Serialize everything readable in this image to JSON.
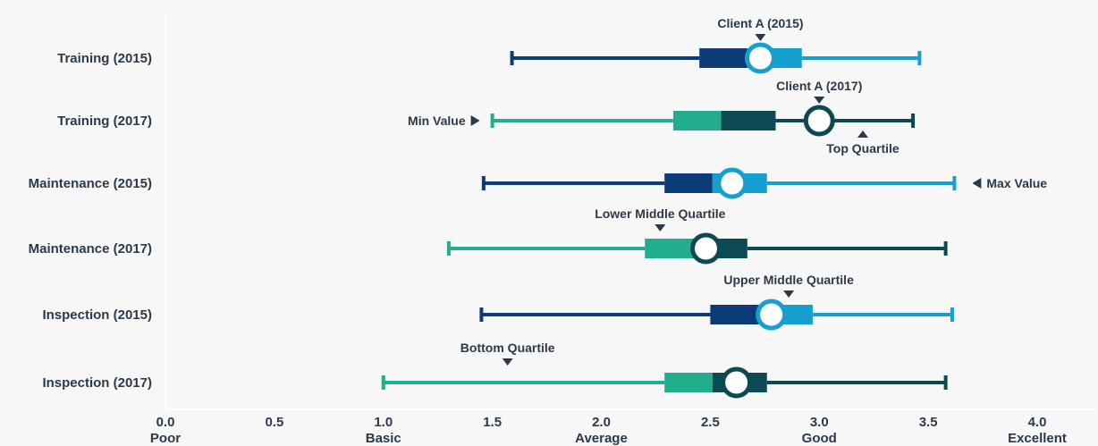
{
  "chart_data": {
    "type": "boxplot",
    "xlim": [
      0,
      4
    ],
    "x_ticks": [
      {
        "value": 0.0,
        "label": "0.0",
        "sublabel": "Poor"
      },
      {
        "value": 0.5,
        "label": "0.5",
        "sublabel": ""
      },
      {
        "value": 1.0,
        "label": "1.0",
        "sublabel": "Basic"
      },
      {
        "value": 1.5,
        "label": "1.5",
        "sublabel": ""
      },
      {
        "value": 2.0,
        "label": "2.0",
        "sublabel": "Average"
      },
      {
        "value": 2.5,
        "label": "2.5",
        "sublabel": ""
      },
      {
        "value": 3.0,
        "label": "3.0",
        "sublabel": "Good"
      },
      {
        "value": 3.5,
        "label": "3.5",
        "sublabel": ""
      },
      {
        "value": 4.0,
        "label": "4.0",
        "sublabel": "Excellent"
      }
    ],
    "rows": [
      {
        "label": "Training (2015)",
        "year": "2015",
        "min": 1.59,
        "q1": 2.45,
        "median": 2.67,
        "q3": 2.92,
        "max": 3.46,
        "client": 2.73
      },
      {
        "label": "Training (2017)",
        "year": "2017",
        "min": 1.5,
        "q1": 2.33,
        "median": 2.55,
        "q3": 2.8,
        "max": 3.43,
        "client": 3.0
      },
      {
        "label": "Maintenance (2015)",
        "year": "2015",
        "min": 1.46,
        "q1": 2.29,
        "median": 2.51,
        "q3": 2.76,
        "max": 3.62,
        "client": 2.6
      },
      {
        "label": "Maintenance (2017)",
        "year": "2017",
        "min": 1.3,
        "q1": 2.2,
        "median": 2.42,
        "q3": 2.67,
        "max": 3.58,
        "client": 2.48
      },
      {
        "label": "Inspection (2015)",
        "year": "2015",
        "min": 1.45,
        "q1": 2.5,
        "median": 2.72,
        "q3": 2.97,
        "max": 3.61,
        "client": 2.78
      },
      {
        "label": "Inspection (2017)",
        "year": "2017",
        "min": 1.0,
        "q1": 2.29,
        "median": 2.51,
        "q3": 2.76,
        "max": 3.58,
        "client": 2.62
      }
    ],
    "annotations": [
      {
        "text": "Client A (2015)",
        "row": 0,
        "value": 2.73,
        "side": "above"
      },
      {
        "text": "Client A (2017)",
        "row": 1,
        "value": 3.0,
        "side": "above"
      },
      {
        "text": "Min Value",
        "row": 1,
        "value": 1.5,
        "side": "left"
      },
      {
        "text": "Top Quartile",
        "row": 1,
        "value": 3.2,
        "side": "below"
      },
      {
        "text": "Max Value",
        "row": 2,
        "value": 3.62,
        "side": "right"
      },
      {
        "text": "Lower Middle Quartile",
        "row": 3,
        "value": 2.27,
        "side": "above"
      },
      {
        "text": "Upper Middle Quartile",
        "row": 4,
        "value": 2.86,
        "side": "above"
      },
      {
        "text": "Bottom Quartile",
        "row": 5,
        "value": 1.57,
        "side": "above"
      }
    ],
    "colors": {
      "2015": {
        "dark": "#0c3c78",
        "light": "#15a0cf"
      },
      "2017": {
        "dark": "#0b4a52",
        "light": "#20ae8c"
      },
      "axis": "#ffffff",
      "text": "#2b3a4a",
      "marker_fill": "#ffffff"
    }
  }
}
